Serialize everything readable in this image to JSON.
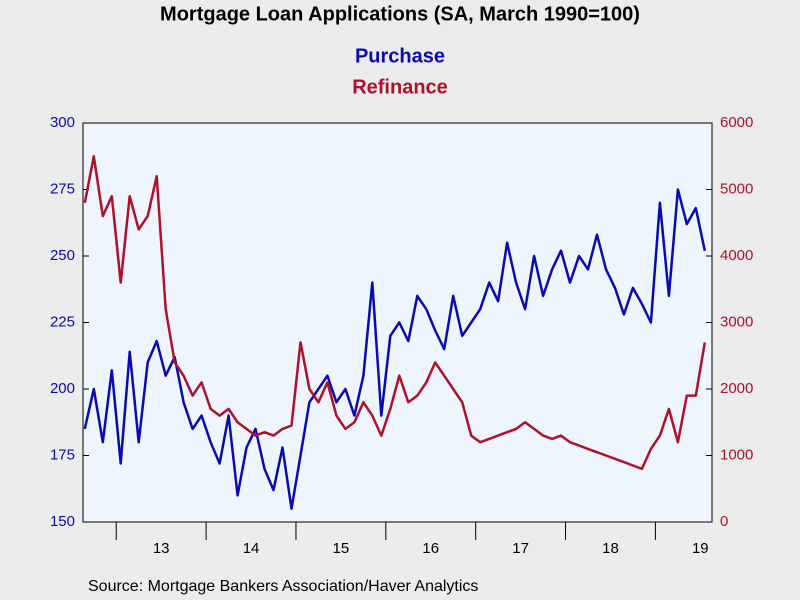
{
  "chart_data": {
    "type": "line",
    "title": "Mortgage Loan Applications (SA, March 1990=100)",
    "source": "Source:  Mortgage Bankers Association/Haver Analytics",
    "x": [
      12.65,
      12.75,
      12.85,
      12.95,
      13.05,
      13.15,
      13.25,
      13.35,
      13.45,
      13.55,
      13.65,
      13.75,
      13.85,
      13.95,
      14.05,
      14.15,
      14.25,
      14.35,
      14.45,
      14.55,
      14.65,
      14.75,
      14.85,
      14.95,
      15.05,
      15.15,
      15.25,
      15.35,
      15.45,
      15.55,
      15.65,
      15.75,
      15.85,
      15.95,
      16.05,
      16.15,
      16.25,
      16.35,
      16.45,
      16.55,
      16.65,
      16.75,
      16.85,
      16.95,
      17.05,
      17.15,
      17.25,
      17.35,
      17.45,
      17.55,
      17.65,
      17.75,
      17.85,
      17.95,
      18.05,
      18.15,
      18.25,
      18.35,
      18.45,
      18.55,
      18.65,
      18.75,
      18.85,
      18.95,
      19.05,
      19.15,
      19.25,
      19.35,
      19.45,
      19.55
    ],
    "series": [
      {
        "name": "Purchase",
        "color": "#0a0ab4",
        "axis": "y",
        "values": [
          185,
          200,
          180,
          207,
          172,
          214,
          180,
          210,
          218,
          205,
          212,
          195,
          185,
          190,
          180,
          172,
          190,
          160,
          178,
          185,
          170,
          162,
          178,
          155,
          175,
          195,
          200,
          205,
          195,
          200,
          190,
          205,
          240,
          190,
          220,
          225,
          218,
          235,
          230,
          222,
          215,
          235,
          220,
          225,
          230,
          240,
          233,
          255,
          240,
          230,
          250,
          235,
          245,
          252,
          240,
          250,
          245,
          258,
          245,
          238,
          228,
          238,
          232,
          225,
          270,
          235,
          275,
          262,
          268,
          252
        ]
      },
      {
        "name": "Refinance",
        "color": "#b0102a",
        "axis": "y2",
        "values": [
          4800,
          5500,
          4600,
          4900,
          3600,
          4900,
          4400,
          4600,
          5200,
          3200,
          2400,
          2200,
          1900,
          2100,
          1700,
          1600,
          1700,
          1500,
          1400,
          1300,
          1350,
          1300,
          1400,
          1450,
          2700,
          2000,
          1800,
          2100,
          1600,
          1400,
          1500,
          1800,
          1600,
          1300,
          1700,
          2200,
          1800,
          1900,
          2100,
          2400,
          2200,
          2000,
          1800,
          1300,
          1200,
          1250,
          1300,
          1350,
          1400,
          1500,
          1400,
          1300,
          1250,
          1300,
          1200,
          1150,
          1100,
          1050,
          1000,
          950,
          900,
          850,
          800,
          1100,
          1300,
          1700,
          1200,
          1900,
          1900,
          2700
        ]
      }
    ],
    "xlim": [
      12.63,
      19.63
    ],
    "xticks": [
      {
        "value": 13,
        "label": "13"
      },
      {
        "value": 14,
        "label": "14"
      },
      {
        "value": 15,
        "label": "15"
      },
      {
        "value": 16,
        "label": "16"
      },
      {
        "value": 17,
        "label": "17"
      },
      {
        "value": 18,
        "label": "18"
      },
      {
        "value": 19,
        "label": "19"
      }
    ],
    "ylim": [
      150,
      300
    ],
    "yticks": [
      150,
      175,
      200,
      225,
      250,
      275,
      300
    ],
    "y2lim": [
      0,
      6000
    ],
    "y2ticks": [
      0,
      1000,
      2000,
      3000,
      4000,
      5000,
      6000
    ]
  }
}
